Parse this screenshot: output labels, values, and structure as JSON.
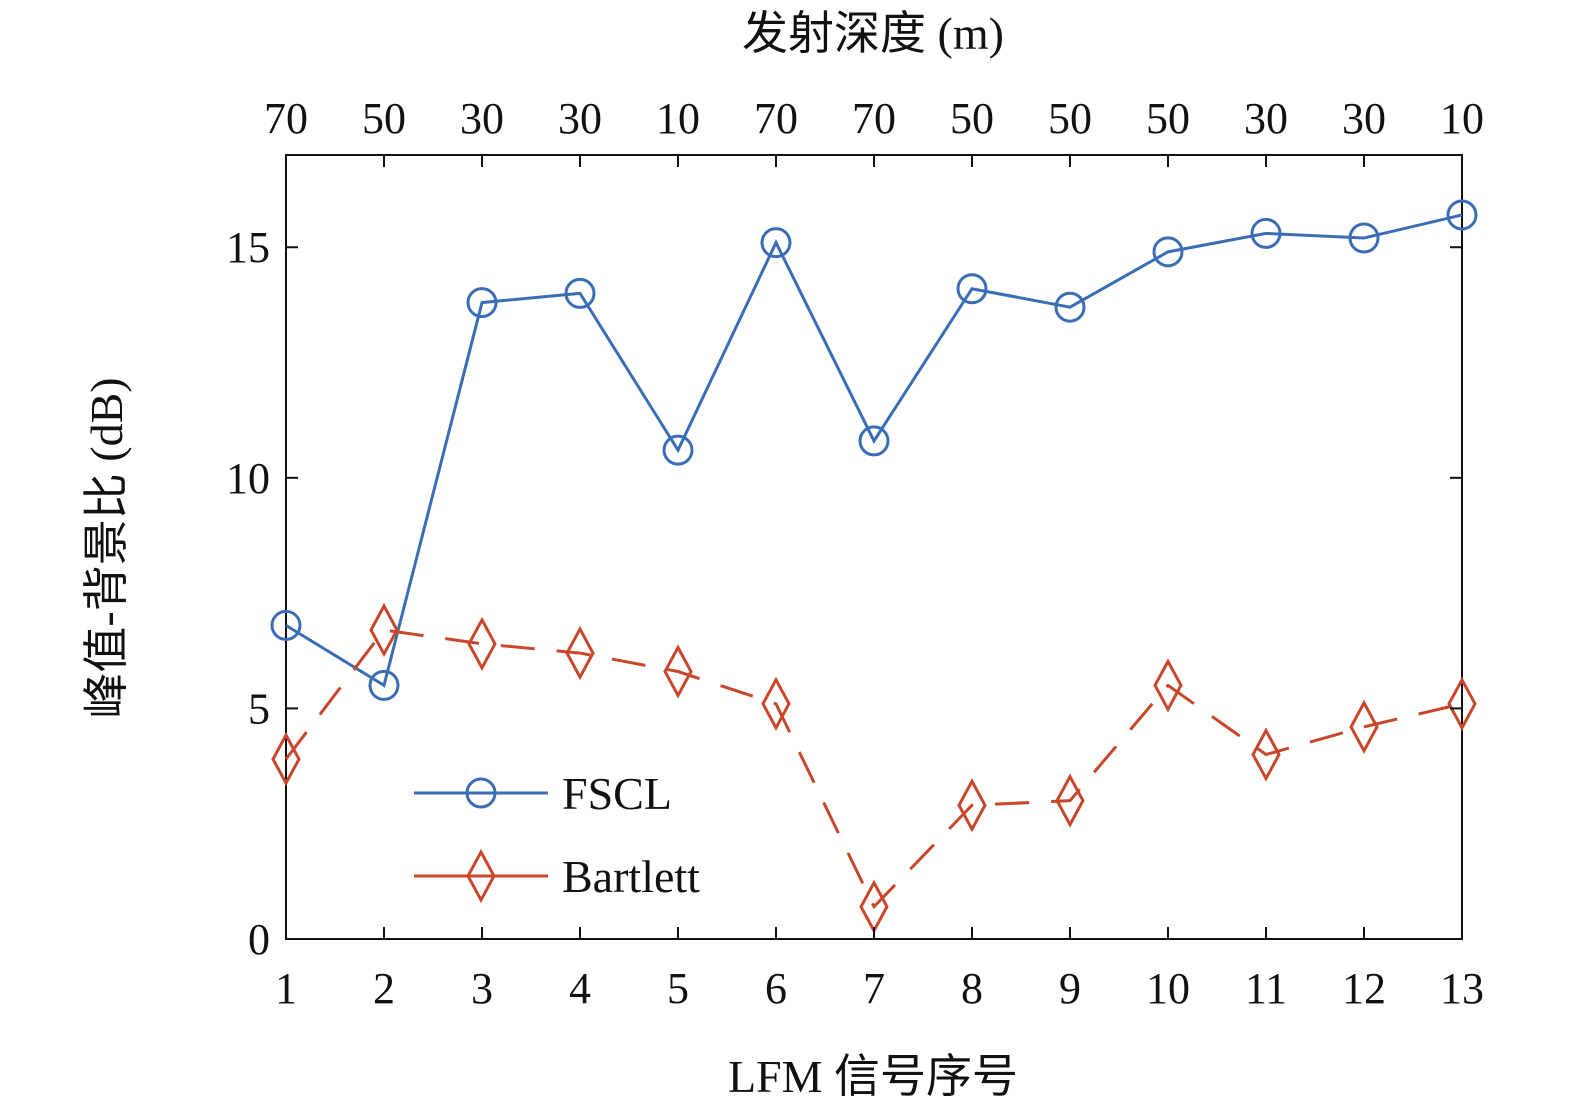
{
  "chart_data": {
    "type": "line",
    "title": "",
    "xlabel": "LFM 信号序号",
    "ylabel": "峰值-背景比 (dB)",
    "top_xlabel": "发射深度 (m)",
    "x": [
      1,
      2,
      3,
      4,
      5,
      6,
      7,
      8,
      9,
      10,
      11,
      12,
      13
    ],
    "x_tick_labels": [
      "1",
      "2",
      "3",
      "4",
      "5",
      "6",
      "7",
      "8",
      "9",
      "10",
      "11",
      "12",
      "13"
    ],
    "top_tick_labels": [
      "70",
      "50",
      "30",
      "30",
      "10",
      "70",
      "70",
      "50",
      "50",
      "50",
      "30",
      "30",
      "10"
    ],
    "y_ticks": [
      0,
      5,
      10,
      15
    ],
    "y_tick_labels": [
      "0",
      "5",
      "10",
      "15"
    ],
    "xlim": [
      1,
      13
    ],
    "ylim": [
      0,
      17
    ],
    "grid": false,
    "legend_position": "bottom-left",
    "series": [
      {
        "name": "FSCL",
        "color": "#3a6db5",
        "marker": "circle",
        "line_style": "solid",
        "values": [
          6.8,
          5.5,
          13.8,
          14.0,
          10.6,
          15.1,
          10.8,
          14.1,
          13.7,
          14.9,
          15.3,
          15.2,
          15.7
        ]
      },
      {
        "name": "Bartlett",
        "color": "#c8472a",
        "marker": "diamond",
        "line_style": "dashed",
        "values": [
          3.9,
          6.7,
          6.4,
          6.2,
          5.8,
          5.1,
          0.7,
          2.9,
          3.0,
          5.5,
          4.0,
          4.6,
          5.1
        ]
      }
    ]
  }
}
